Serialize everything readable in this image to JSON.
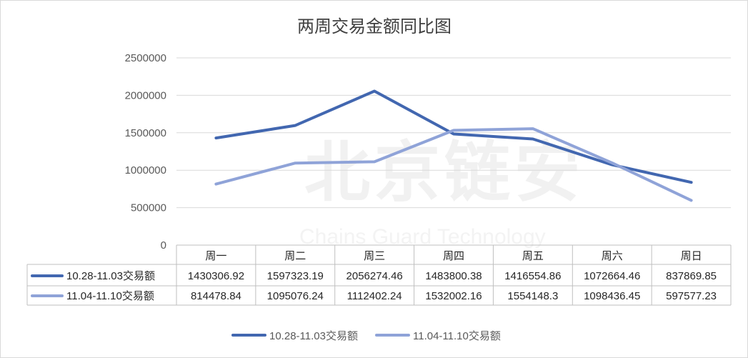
{
  "chart_data": {
    "type": "line",
    "title": "两周交易金额同比图",
    "categories": [
      "周一",
      "周二",
      "周三",
      "周四",
      "周五",
      "周六",
      "周日"
    ],
    "series": [
      {
        "name": "10.28-11.03交易额",
        "color": "#4267b0",
        "values": [
          1430306.92,
          1597323.19,
          2056274.46,
          1483800.38,
          1416554.86,
          1072664.46,
          837869.85
        ],
        "labels": [
          "1430306.92",
          "1597323.19",
          "2056274.46",
          "1483800.38",
          "1416554.86",
          "1072664.46",
          "837869.85"
        ]
      },
      {
        "name": "11.04-11.10交易额",
        "color": "#8fa3d8",
        "values": [
          814478.84,
          1095076.24,
          1112402.24,
          1532002.16,
          1554148.3,
          1098436.45,
          597577.23
        ],
        "labels": [
          "814478.84",
          "1095076.24",
          "1112402.24",
          "1532002.16",
          "1554148.3",
          "1098436.45",
          "597577.23"
        ]
      }
    ],
    "ylim": [
      0,
      2500000
    ],
    "yticks": [
      "0",
      "500000",
      "1000000",
      "1500000",
      "2000000",
      "2500000"
    ],
    "grid": true,
    "data_table": true,
    "legend": "bottom"
  },
  "watermark": {
    "cn": "北京链安",
    "en": "Chains Guard Technology"
  }
}
